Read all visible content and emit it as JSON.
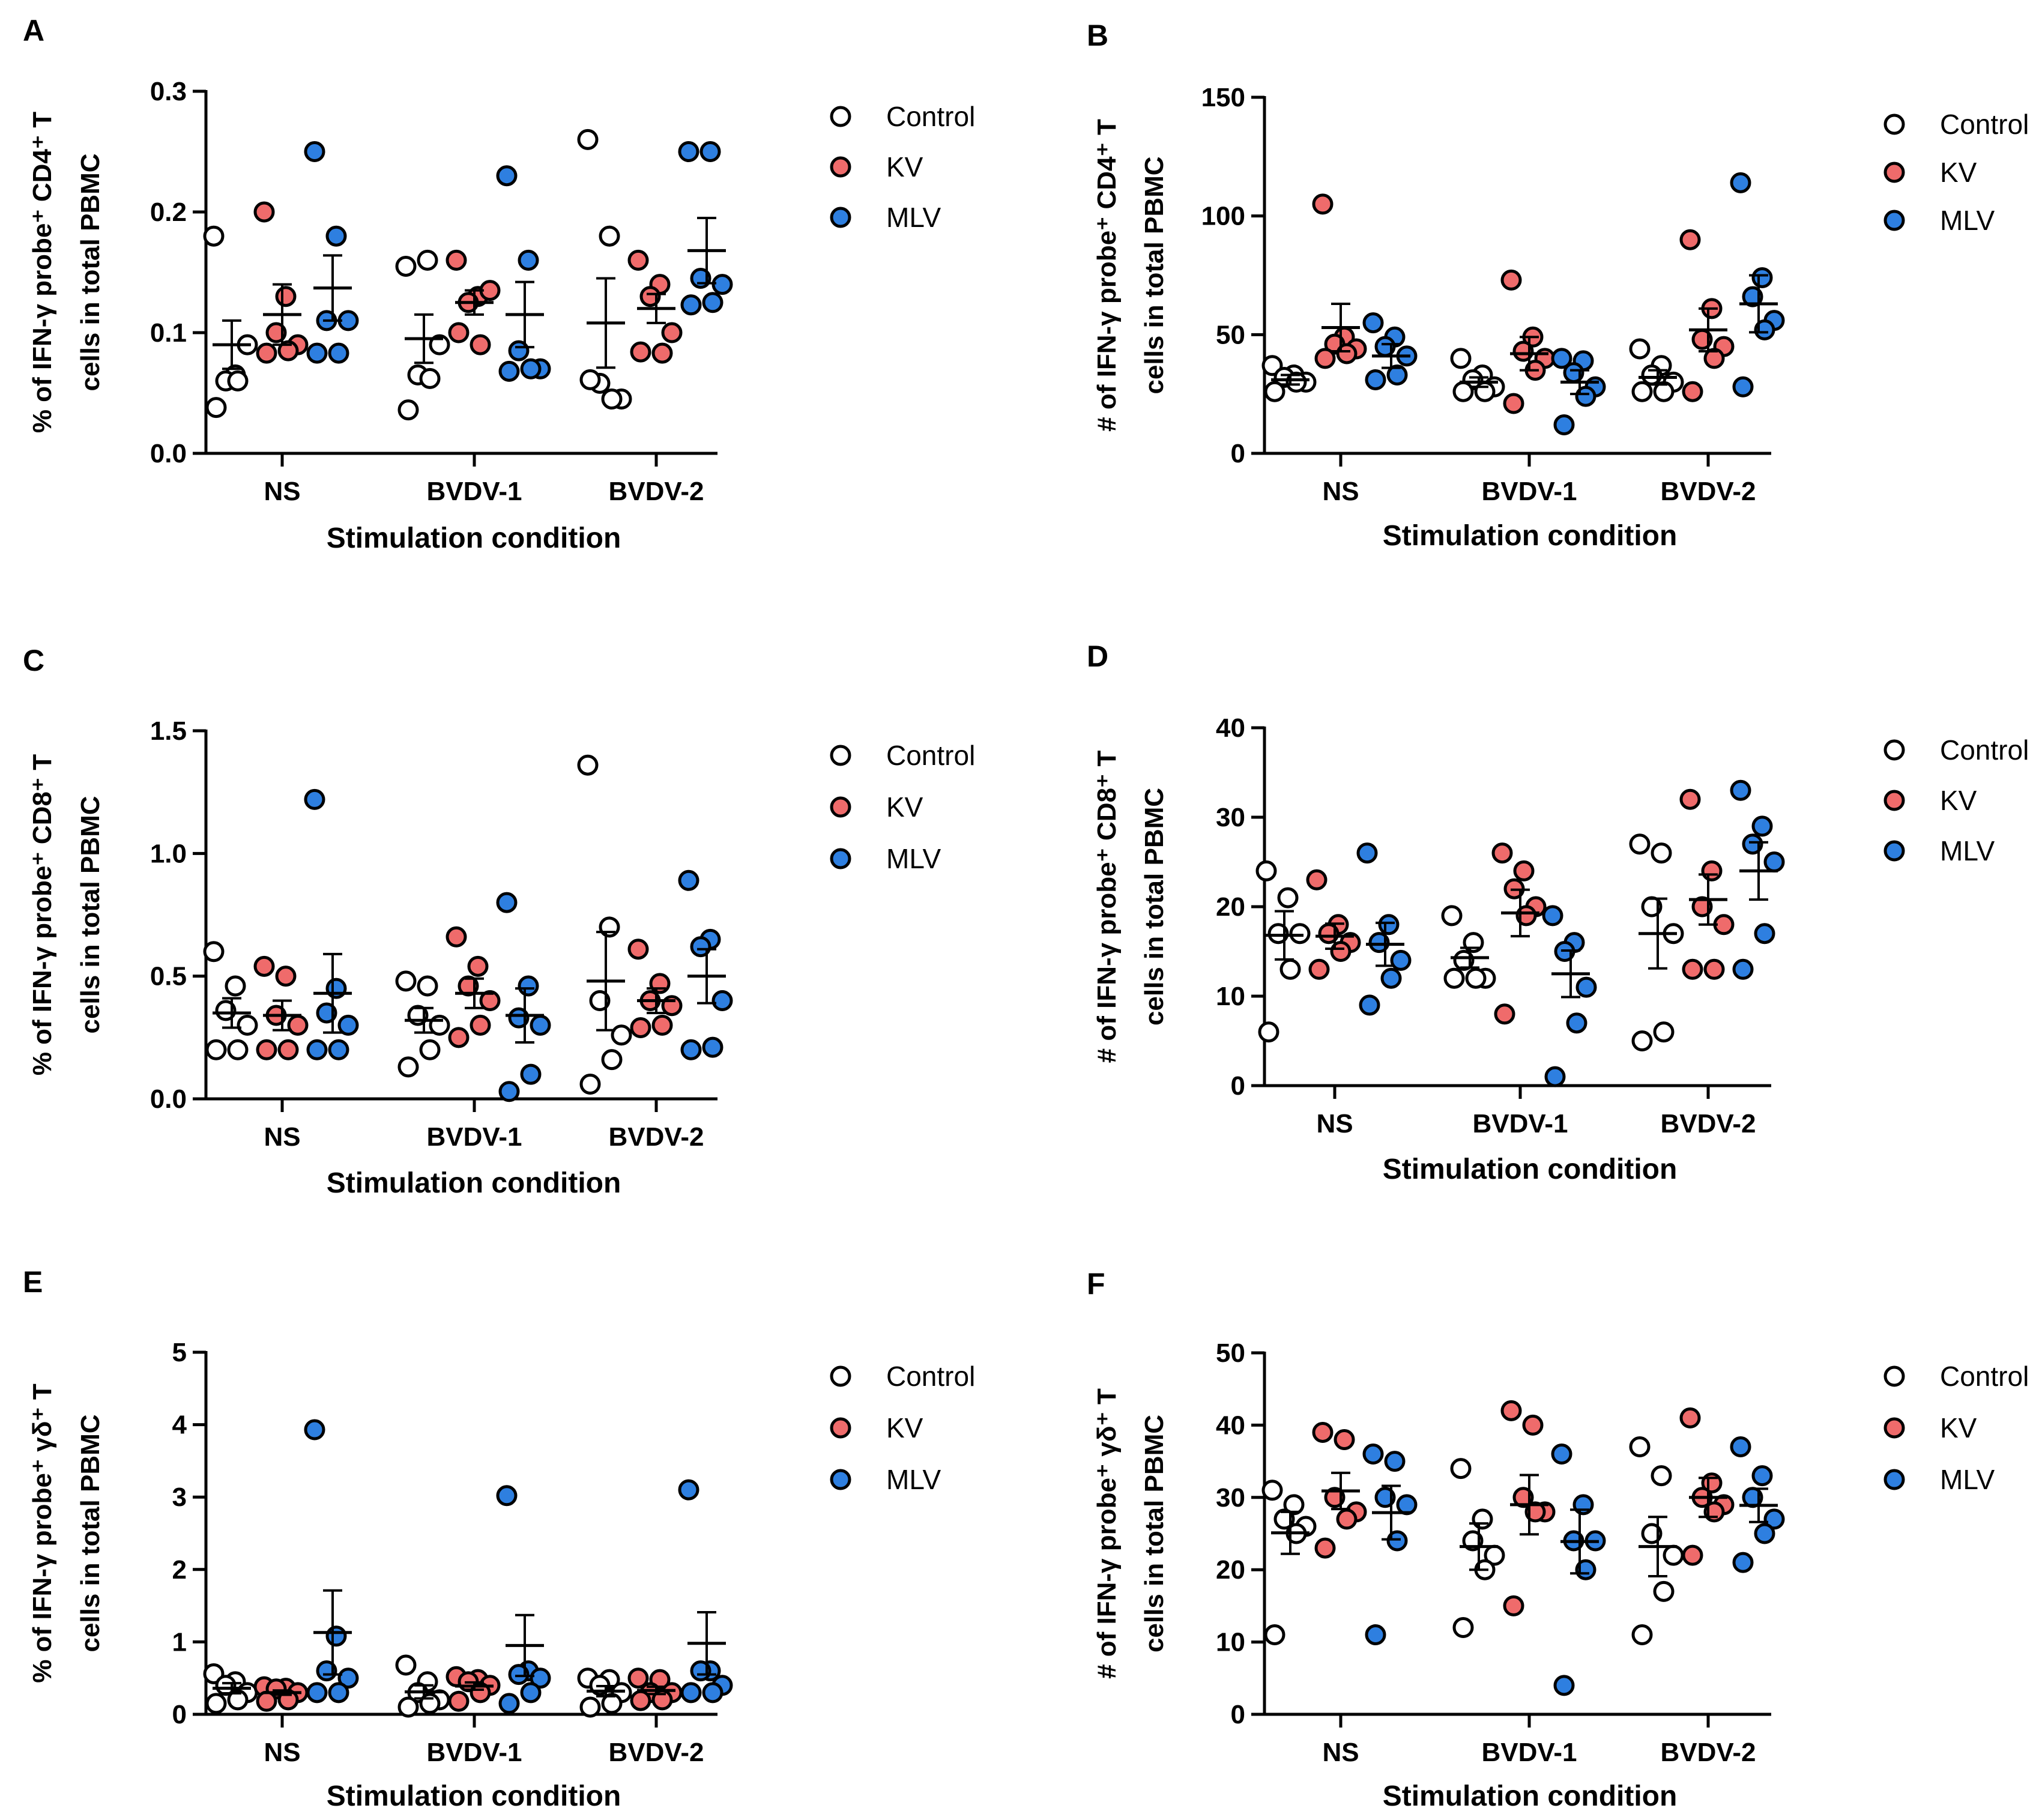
{
  "colors": {
    "Control": "#ffffff",
    "KV": "#ef6b6b",
    "MLV": "#2e7fe0"
  },
  "chart_data": [
    {
      "type": "scatter",
      "panel": "A",
      "ylabel_line1": "% of IFN-γ probe⁺ CD4⁺ T",
      "ylabel_line2": "cells in total PBMC",
      "xlabel": "Stimulation condition",
      "ylim": [
        0,
        0.3
      ],
      "yticks": [
        "0.0",
        "0.1",
        "0.2",
        "0.3"
      ],
      "ytick_values": [
        0,
        0.1,
        0.2,
        0.3
      ],
      "categories": [
        "NS",
        "BVDV-1",
        "BVDV-2"
      ],
      "legend": [
        "Control",
        "KV",
        "MLV"
      ],
      "series": [
        {
          "name": "Control",
          "groups": [
            [
              0.18,
              0.065,
              0.06,
              0.09,
              0.06,
              0.038
            ],
            [
              0.155,
              0.16,
              0.065,
              0.09,
              0.062,
              0.036
            ],
            [
              0.26,
              0.18,
              0.058,
              0.045,
              0.045,
              0.061
            ]
          ],
          "mean": [
            0.09,
            0.095,
            0.108
          ],
          "sem": [
            0.02,
            0.02,
            0.037
          ]
        },
        {
          "name": "KV",
          "groups": [
            [
              0.2,
              0.13,
              0.1,
              0.09,
              0.085,
              0.083
            ],
            [
              0.16,
              0.13,
              0.125,
              0.135,
              0.09,
              0.1
            ],
            [
              0.16,
              0.14,
              0.13,
              0.1,
              0.083,
              0.084
            ]
          ],
          "mean": [
            0.115,
            0.125,
            0.12
          ],
          "sem": [
            0.025,
            0.01,
            0.012
          ]
        },
        {
          "name": "MLV",
          "groups": [
            [
              0.25,
              0.18,
              0.11,
              0.11,
              0.083,
              0.083
            ],
            [
              0.23,
              0.16,
              0.085,
              0.07,
              0.07,
              0.068
            ],
            [
              0.25,
              0.25,
              0.145,
              0.14,
              0.125,
              0.123
            ]
          ],
          "mean": [
            0.137,
            0.115,
            0.168
          ],
          "sem": [
            0.027,
            0.027,
            0.027
          ]
        }
      ]
    },
    {
      "type": "scatter",
      "panel": "B",
      "ylabel_line1": "# of IFN-γ probe⁺ CD4⁺ T",
      "ylabel_line2": "cells in total PBMC",
      "xlabel": "Stimulation condition",
      "ylim": [
        0,
        150
      ],
      "yticks": [
        "0",
        "50",
        "100",
        "150"
      ],
      "ytick_values": [
        0,
        50,
        100,
        150
      ],
      "categories": [
        "NS",
        "BVDV-1",
        "BVDV-2"
      ],
      "legend": [
        "Control",
        "KV",
        "MLV"
      ],
      "series": [
        {
          "name": "Control",
          "groups": [
            [
              37,
              33,
              32,
              30,
              30,
              26
            ],
            [
              40,
              33,
              31,
              28,
              26,
              26
            ],
            [
              44,
              37,
              33,
              30,
              26,
              26
            ]
          ],
          "mean": [
            31,
            30,
            32
          ],
          "sem": [
            2,
            2,
            3
          ]
        },
        {
          "name": "KV",
          "groups": [
            [
              105,
              49,
              46,
              44,
              42,
              40
            ],
            [
              73,
              49,
              43,
              40,
              35,
              21
            ],
            [
              90,
              61,
              48,
              45,
              40,
              26
            ]
          ],
          "mean": [
            53,
            42,
            52
          ],
          "sem": [
            10,
            7,
            9
          ]
        },
        {
          "name": "MLV",
          "groups": [
            [
              55,
              49,
              45,
              41,
              33,
              31
            ],
            [
              40,
              39,
              34,
              28,
              24,
              12
            ],
            [
              114,
              74,
              66,
              56,
              52,
              28
            ]
          ],
          "mean": [
            41,
            30,
            63
          ],
          "sem": [
            5,
            5,
            12
          ]
        }
      ]
    },
    {
      "type": "scatter",
      "panel": "C",
      "ylabel_line1": "% of IFN-γ probe⁺ CD8⁺ T",
      "ylabel_line2": "cells in total PBMC",
      "xlabel": "Stimulation condition",
      "ylim": [
        0,
        1.5
      ],
      "yticks": [
        "0.0",
        "0.5",
        "1.0",
        "1.5"
      ],
      "ytick_values": [
        0,
        0.5,
        1.0,
        1.5
      ],
      "categories": [
        "NS",
        "BVDV-1",
        "BVDV-2"
      ],
      "legend": [
        "Control",
        "KV",
        "MLV"
      ],
      "series": [
        {
          "name": "Control",
          "groups": [
            [
              0.6,
              0.46,
              0.36,
              0.3,
              0.2,
              0.2
            ],
            [
              0.48,
              0.46,
              0.34,
              0.3,
              0.2,
              0.13
            ],
            [
              1.36,
              0.7,
              0.4,
              0.26,
              0.16,
              0.06
            ]
          ],
          "mean": [
            0.35,
            0.32,
            0.48
          ],
          "sem": [
            0.06,
            0.05,
            0.2
          ]
        },
        {
          "name": "KV",
          "groups": [
            [
              0.54,
              0.5,
              0.34,
              0.3,
              0.2,
              0.2
            ],
            [
              0.66,
              0.54,
              0.46,
              0.4,
              0.3,
              0.25
            ],
            [
              0.61,
              0.47,
              0.4,
              0.38,
              0.3,
              0.29
            ]
          ],
          "mean": [
            0.34,
            0.43,
            0.4
          ],
          "sem": [
            0.06,
            0.06,
            0.05
          ]
        },
        {
          "name": "MLV",
          "groups": [
            [
              1.22,
              0.45,
              0.35,
              0.3,
              0.2,
              0.2
            ],
            [
              0.8,
              0.46,
              0.33,
              0.3,
              0.1,
              0.03
            ],
            [
              0.89,
              0.65,
              0.62,
              0.4,
              0.21,
              0.2
            ]
          ],
          "mean": [
            0.43,
            0.34,
            0.5
          ],
          "sem": [
            0.16,
            0.11,
            0.11
          ]
        }
      ]
    },
    {
      "type": "scatter",
      "panel": "D",
      "ylabel_line1": "# of IFN-γ probe⁺ CD8⁺ T",
      "ylabel_line2": "cells in total PBMC",
      "xlabel": "Stimulation condition",
      "ylim": [
        0,
        40
      ],
      "yticks": [
        "0",
        "10",
        "20",
        "30",
        "40"
      ],
      "ytick_values": [
        0,
        10,
        20,
        30,
        40
      ],
      "categories": [
        "NS",
        "BVDV-1",
        "BVDV-2"
      ],
      "legend": [
        "Control",
        "KV",
        "MLV"
      ],
      "series": [
        {
          "name": "Control",
          "groups": [
            [
              24,
              21,
              17,
              17,
              13,
              6
            ],
            [
              19,
              16,
              14,
              12,
              12,
              12
            ],
            [
              27,
              26,
              20,
              17,
              6,
              5
            ]
          ],
          "mean": [
            16.8,
            14.3,
            17
          ],
          "sem": [
            2.7,
            1.1,
            3.9
          ]
        },
        {
          "name": "KV",
          "groups": [
            [
              23,
              18,
              17,
              16,
              15,
              13
            ],
            [
              26,
              24,
              22,
              20,
              19,
              8
            ],
            [
              32,
              24,
              20,
              18,
              13,
              13
            ]
          ],
          "mean": [
            16.7,
            19.3,
            20.8
          ],
          "sem": [
            1.4,
            2.6,
            2.8
          ]
        },
        {
          "name": "MLV",
          "groups": [
            [
              26,
              18,
              16,
              14,
              12,
              9
            ],
            [
              19,
              16,
              15,
              11,
              7,
              1
            ],
            [
              33,
              29,
              27,
              25,
              17,
              13
            ]
          ],
          "mean": [
            15.8,
            12.5,
            24
          ],
          "sem": [
            2.4,
            2.6,
            3.2
          ]
        }
      ]
    },
    {
      "type": "scatter",
      "panel": "E",
      "ylabel_line1": "% of IFN-γ probe⁺ γδ⁺ T",
      "ylabel_line2": "cells in total PBMC",
      "xlabel": "Stimulation condition",
      "ylim": [
        0,
        5
      ],
      "yticks": [
        "0",
        "1",
        "2",
        "3",
        "4",
        "5"
      ],
      "ytick_values": [
        0,
        1,
        2,
        3,
        4,
        5
      ],
      "categories": [
        "NS",
        "BVDV-1",
        "BVDV-2"
      ],
      "legend": [
        "Control",
        "KV",
        "MLV"
      ],
      "series": [
        {
          "name": "Control",
          "groups": [
            [
              0.56,
              0.45,
              0.4,
              0.3,
              0.2,
              0.15
            ],
            [
              0.68,
              0.45,
              0.3,
              0.2,
              0.15,
              0.1
            ],
            [
              0.5,
              0.48,
              0.4,
              0.3,
              0.15,
              0.1
            ]
          ],
          "mean": [
            0.36,
            0.31,
            0.32
          ],
          "sem": [
            0.07,
            0.09,
            0.07
          ]
        },
        {
          "name": "KV",
          "groups": [
            [
              0.38,
              0.36,
              0.35,
              0.3,
              0.2,
              0.18
            ],
            [
              0.52,
              0.48,
              0.45,
              0.4,
              0.3,
              0.18
            ],
            [
              0.5,
              0.48,
              0.3,
              0.3,
              0.2,
              0.19
            ]
          ],
          "mean": [
            0.3,
            0.39,
            0.33
          ],
          "sem": [
            0.03,
            0.05,
            0.05
          ]
        },
        {
          "name": "MLV",
          "groups": [
            [
              3.93,
              1.08,
              0.6,
              0.5,
              0.3,
              0.3
            ],
            [
              3.02,
              0.6,
              0.55,
              0.5,
              0.3,
              0.15
            ],
            [
              3.1,
              0.6,
              0.6,
              0.4,
              0.3,
              0.3
            ]
          ],
          "mean": [
            1.13,
            0.95,
            0.98
          ],
          "sem": [
            0.58,
            0.42,
            0.43
          ]
        }
      ]
    },
    {
      "type": "scatter",
      "panel": "F",
      "ylabel_line1": "# of IFN-γ probe⁺ γδ⁺ T",
      "ylabel_line2": "cells in total PBMC",
      "xlabel": "Stimulation condition",
      "ylim": [
        0,
        50
      ],
      "yticks": [
        "0",
        "10",
        "20",
        "30",
        "40",
        "50"
      ],
      "ytick_values": [
        0,
        10,
        20,
        30,
        40,
        50
      ],
      "categories": [
        "NS",
        "BVDV-1",
        "BVDV-2"
      ],
      "legend": [
        "Control",
        "KV",
        "MLV"
      ],
      "series": [
        {
          "name": "Control",
          "groups": [
            [
              31,
              29,
              27,
              26,
              25,
              11
            ],
            [
              34,
              27,
              24,
              22,
              20,
              12
            ],
            [
              37,
              33,
              25,
              22,
              17,
              11
            ]
          ],
          "mean": [
            25.1,
            23.2,
            23.2
          ],
          "sem": [
            2.9,
            3.2,
            4.1
          ]
        },
        {
          "name": "KV",
          "groups": [
            [
              39,
              38,
              30,
              28,
              27,
              23
            ],
            [
              42,
              40,
              30,
              28,
              28,
              15
            ],
            [
              41,
              32,
              30,
              29,
              28,
              22
            ]
          ],
          "mean": [
            30.9,
            29,
            30
          ],
          "sem": [
            2.5,
            4.1,
            2.7
          ]
        },
        {
          "name": "MLV",
          "groups": [
            [
              36,
              35,
              30,
              29,
              24,
              11
            ],
            [
              36,
              29,
              24,
              24,
              20,
              4
            ],
            [
              37,
              33,
              30,
              27,
              25,
              21
            ]
          ],
          "mean": [
            27.9,
            23.9,
            28.9
          ],
          "sem": [
            3.7,
            4.4,
            2.3
          ]
        }
      ]
    }
  ]
}
